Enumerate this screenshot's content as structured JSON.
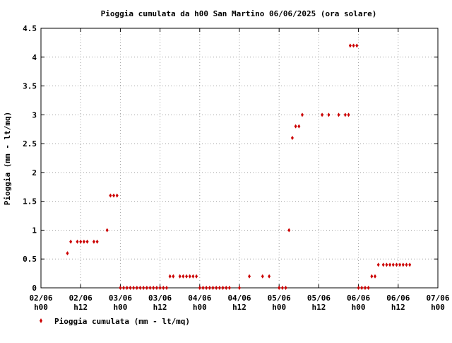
{
  "chart_data": {
    "type": "scatter",
    "title": "Pioggia cumulata da h00 San Martino 06/06/2025 (ora solare)",
    "ylabel": "Pioggia (mm - lt/mq)",
    "xlabel": "",
    "ylim": [
      0,
      4.5
    ],
    "xlim": [
      0,
      120
    ],
    "yticks": [
      0,
      0.5,
      1,
      1.5,
      2,
      2.5,
      3,
      3.5,
      4,
      4.5
    ],
    "yticklabels": [
      "0",
      "0.5",
      "1",
      "1.5",
      "2",
      "2.5",
      "3",
      "3.5",
      "4",
      "4.5"
    ],
    "xticks": [
      {
        "hours": 0,
        "date": "02/06",
        "time": "h00"
      },
      {
        "hours": 12,
        "date": "02/06",
        "time": "h12"
      },
      {
        "hours": 24,
        "date": "03/06",
        "time": "h00"
      },
      {
        "hours": 36,
        "date": "03/06",
        "time": "h12"
      },
      {
        "hours": 48,
        "date": "04/06",
        "time": "h00"
      },
      {
        "hours": 60,
        "date": "04/06",
        "time": "h12"
      },
      {
        "hours": 72,
        "date": "05/06",
        "time": "h00"
      },
      {
        "hours": 84,
        "date": "05/06",
        "time": "h12"
      },
      {
        "hours": 96,
        "date": "06/06",
        "time": "h00"
      },
      {
        "hours": 108,
        "date": "06/06",
        "time": "h12"
      },
      {
        "hours": 120,
        "date": "07/06",
        "time": "h00"
      }
    ],
    "grid": true,
    "legend_position": "bottom-left",
    "series": [
      {
        "name": "Pioggia cumulata (mm - lt/mq)",
        "color": "#cc0000",
        "marker": "diamond",
        "points": [
          [
            8,
            0.6
          ],
          [
            9,
            0.8
          ],
          [
            11,
            0.8
          ],
          [
            12,
            0.8
          ],
          [
            13,
            0.8
          ],
          [
            14,
            0.8
          ],
          [
            16,
            0.8
          ],
          [
            17,
            0.8
          ],
          [
            20,
            1.0
          ],
          [
            21,
            1.6
          ],
          [
            22,
            1.6
          ],
          [
            23,
            1.6
          ],
          [
            24,
            0
          ],
          [
            25,
            0
          ],
          [
            26,
            0
          ],
          [
            27,
            0
          ],
          [
            28,
            0
          ],
          [
            29,
            0
          ],
          [
            30,
            0
          ],
          [
            31,
            0
          ],
          [
            32,
            0
          ],
          [
            33,
            0
          ],
          [
            34,
            0
          ],
          [
            35,
            0
          ],
          [
            36,
            0
          ],
          [
            37,
            0
          ],
          [
            38,
            0
          ],
          [
            39,
            0.2
          ],
          [
            40,
            0.2
          ],
          [
            42,
            0.2
          ],
          [
            43,
            0.2
          ],
          [
            44,
            0.2
          ],
          [
            45,
            0.2
          ],
          [
            46,
            0.2
          ],
          [
            47,
            0.2
          ],
          [
            48,
            0
          ],
          [
            49,
            0
          ],
          [
            50,
            0
          ],
          [
            51,
            0
          ],
          [
            52,
            0
          ],
          [
            53,
            0
          ],
          [
            54,
            0
          ],
          [
            55,
            0
          ],
          [
            56,
            0
          ],
          [
            57,
            0
          ],
          [
            60,
            0
          ],
          [
            63,
            0.2
          ],
          [
            67,
            0.2
          ],
          [
            69,
            0.2
          ],
          [
            72,
            0
          ],
          [
            73,
            0
          ],
          [
            74,
            0
          ],
          [
            75,
            1.0
          ],
          [
            76,
            2.6
          ],
          [
            77,
            2.8
          ],
          [
            78,
            2.8
          ],
          [
            79,
            3.0
          ],
          [
            85,
            3.0
          ],
          [
            87,
            3.0
          ],
          [
            90,
            3.0
          ],
          [
            92,
            3.0
          ],
          [
            93,
            3.0
          ],
          [
            93.5,
            4.2
          ],
          [
            94.5,
            4.2
          ],
          [
            95.5,
            4.2
          ],
          [
            96,
            0
          ],
          [
            97,
            0
          ],
          [
            98,
            0
          ],
          [
            99,
            0
          ],
          [
            100,
            0.2
          ],
          [
            101,
            0.2
          ],
          [
            102,
            0.4
          ],
          [
            103.5,
            0.4
          ],
          [
            104.5,
            0.4
          ],
          [
            105.5,
            0.4
          ],
          [
            106.5,
            0.4
          ],
          [
            107.5,
            0.4
          ],
          [
            108.5,
            0.4
          ],
          [
            109.5,
            0.4
          ],
          [
            110.5,
            0.4
          ],
          [
            111.5,
            0.4
          ]
        ]
      }
    ]
  }
}
